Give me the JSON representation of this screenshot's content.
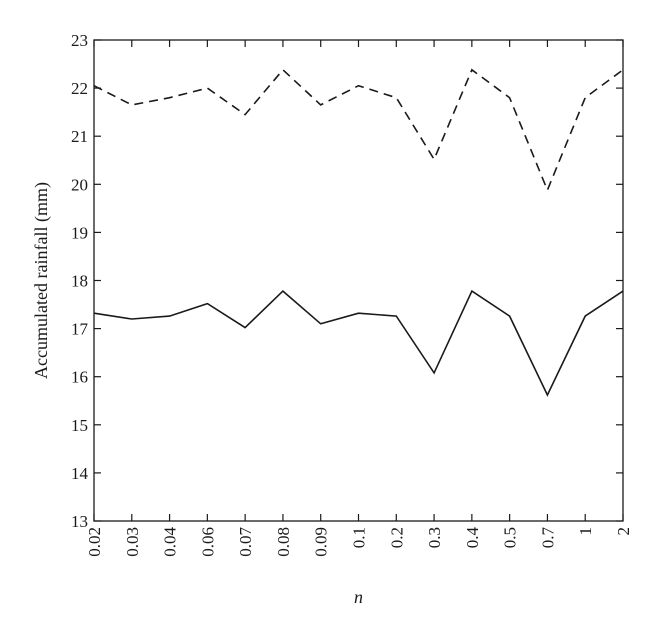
{
  "chart_data": {
    "type": "line",
    "title": "",
    "xlabel": "n",
    "ylabel": "Accumulated rainfall (mm)",
    "categories": [
      "0.02",
      "0.03",
      "0.04",
      "0.06",
      "0.07",
      "0.08",
      "0.09",
      "0.1",
      "0.2",
      "0.3",
      "0.4",
      "0.5",
      "0.7",
      "1",
      "2"
    ],
    "ylim": [
      13,
      23
    ],
    "yticks": [
      13,
      14,
      15,
      16,
      17,
      18,
      19,
      20,
      21,
      22,
      23
    ],
    "grid": false,
    "legend": "none",
    "series": [
      {
        "style": "dashed",
        "color": "#1a1a1a",
        "values": [
          22.05,
          21.65,
          21.8,
          22.0,
          21.45,
          22.38,
          21.65,
          22.05,
          21.8,
          20.52,
          22.38,
          21.8,
          19.88,
          21.8,
          22.38
        ]
      },
      {
        "style": "solid",
        "color": "#1a1a1a",
        "values": [
          17.32,
          17.2,
          17.26,
          17.52,
          17.02,
          17.78,
          17.1,
          17.32,
          17.26,
          16.08,
          17.78,
          17.26,
          15.62,
          17.26,
          17.78
        ]
      }
    ]
  }
}
